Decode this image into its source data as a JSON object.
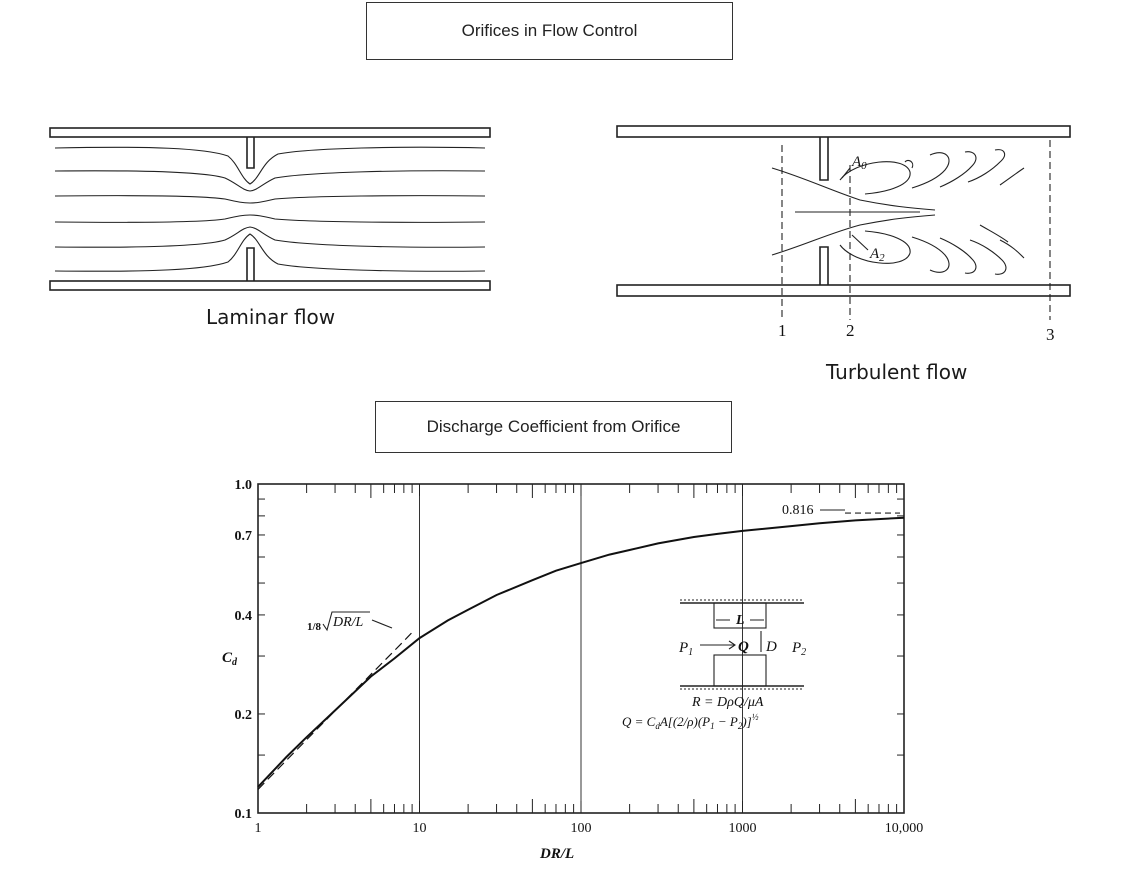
{
  "titles": {
    "top": "Orifices in Flow Control",
    "bottom": "Discharge Coefficient from Orifice"
  },
  "captions": {
    "laminar": "Laminar flow",
    "turbulent": "Turbulent flow"
  },
  "turbulent_labels": {
    "a0": "A",
    "a0_sub": "0",
    "a2": "A",
    "a2_sub": "2",
    "station1": "1",
    "station2": "2",
    "station3": "3"
  },
  "chart_data": {
    "type": "line",
    "xlabel": "DR/L",
    "ylabel": "C",
    "ylabel_sub": "d",
    "x_scale": "log",
    "y_scale": "log",
    "xlim": [
      1,
      10000
    ],
    "ylim": [
      0.1,
      1.0
    ],
    "x_tick_labels": [
      "1",
      "10",
      "100",
      "1000",
      "10,000"
    ],
    "y_tick_labels": [
      "0.1",
      "0.2",
      "0.4",
      "0.7",
      "1.0"
    ],
    "y_tick_values": [
      0.1,
      0.2,
      0.4,
      0.7,
      1.0
    ],
    "x_tick_values": [
      1,
      10,
      100,
      1000,
      10000
    ],
    "grid": "vertical at decades",
    "series": [
      {
        "style": "solid",
        "x": [
          1,
          1.5,
          2,
          3,
          5,
          7,
          10,
          15,
          20,
          30,
          50,
          70,
          100,
          150,
          200,
          300,
          500,
          700,
          1000,
          2000,
          3000,
          5000,
          10000
        ],
        "y": [
          0.12,
          0.148,
          0.17,
          0.205,
          0.26,
          0.295,
          0.34,
          0.385,
          0.415,
          0.46,
          0.51,
          0.545,
          0.575,
          0.61,
          0.63,
          0.66,
          0.69,
          0.705,
          0.72,
          0.745,
          0.76,
          0.775,
          0.79
        ]
      },
      {
        "style": "dashed",
        "x": [
          1,
          2,
          4,
          8,
          9
        ],
        "y": [
          0.118,
          0.167,
          0.236,
          0.333,
          0.354
        ]
      }
    ],
    "annotations": {
      "asymptote": "0.816",
      "asymptote_value": 0.816,
      "formula_prefix": "1/8",
      "formula_radicand": "DR/L",
      "inset": {
        "L": "L",
        "P1": "P",
        "P1_sub": "1",
        "Q": "Q",
        "D": "D",
        "P2": "P",
        "P2_sub": "2",
        "eq1": "R = DρQ/μA",
        "eq2": "Q = C",
        "eq2_sub": "d",
        "eq2_rest": "A[(2/ρ)(P",
        "eq2_p1sub": "1",
        "eq2_mid": " − P",
        "eq2_p2sub": "2",
        "eq2_end": ")]",
        "eq2_exp": "½"
      }
    }
  }
}
